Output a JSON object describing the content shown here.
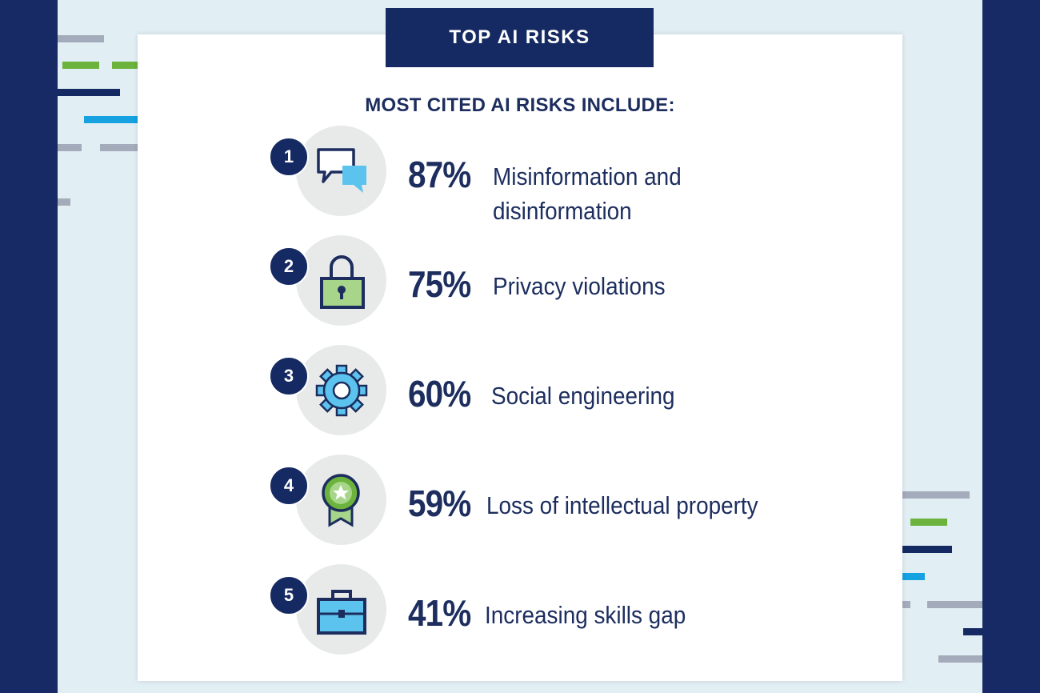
{
  "title": "TOP AI RISKS",
  "subtitle": "MOST CITED AI RISKS INCLUDE:",
  "colors": {
    "navy": "#152a63",
    "text": "#1c2d5e",
    "green": "#6bb33c",
    "light_green": "#a7d58a",
    "blue": "#16a1e0",
    "light_blue": "#5cc3ee",
    "gray_bg": "#e1eef3"
  },
  "risks": [
    {
      "rank": "1",
      "percent": "87%",
      "label_line1": "Misinformation and",
      "label_line2": "disinformation",
      "icon": "speech-bubbles-icon"
    },
    {
      "rank": "2",
      "percent": "75%",
      "label_line1": "Privacy violations",
      "icon": "padlock-icon"
    },
    {
      "rank": "3",
      "percent": "60%",
      "label_line1": "Social engineering",
      "icon": "gear-icon"
    },
    {
      "rank": "4",
      "percent": "59%",
      "label_line1": "Loss of intellectual property",
      "icon": "award-ribbon-icon"
    },
    {
      "rank": "5",
      "percent": "41%",
      "label_line1": "Increasing skills gap",
      "icon": "briefcase-icon"
    }
  ]
}
